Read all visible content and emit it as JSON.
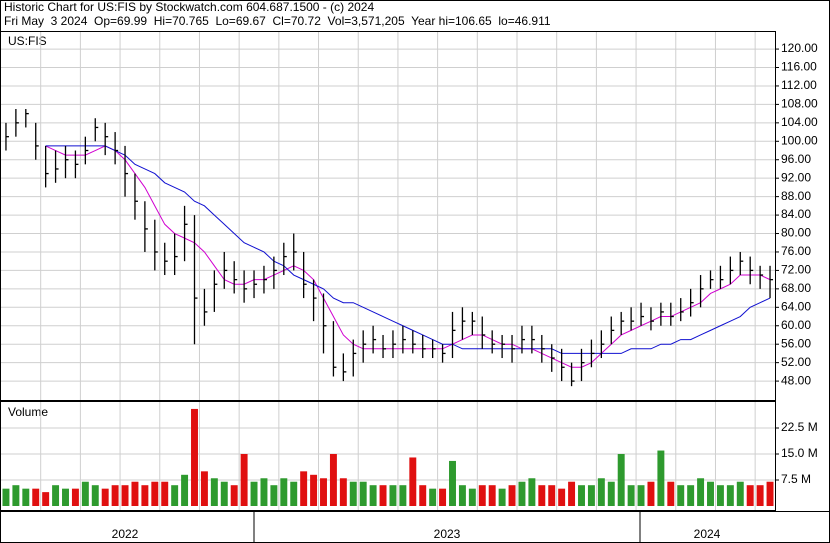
{
  "header": {
    "line1": "Historic Chart for US:FIS by Stockwatch.com 604.687.1500 - (c) 2024",
    "line2": "Fri May  3 2024  Op=69.99  Hi=70.765  Lo=69.67  Cl=70.72  Vol=3,571,205  Year hi=106.65  lo=46.911"
  },
  "chart_data": {
    "type": "hlc",
    "symbol": "US:FIS",
    "volume_title": "Volume",
    "periods": [
      "2022",
      "2023",
      "2024"
    ],
    "ylim": [
      43.9,
      123.7
    ],
    "yticks": [
      {
        "value": 48,
        "label": "48.00"
      },
      {
        "value": 52,
        "label": "52.00"
      },
      {
        "value": 56,
        "label": "56.00"
      },
      {
        "value": 60,
        "label": "60.00"
      },
      {
        "value": 64,
        "label": "64.00"
      },
      {
        "value": 68,
        "label": "68.00"
      },
      {
        "value": 72,
        "label": "72.00"
      },
      {
        "value": 76,
        "label": "76.00"
      },
      {
        "value": 80,
        "label": "80.00"
      },
      {
        "value": 84,
        "label": "84.00"
      },
      {
        "value": 88,
        "label": "88.00"
      },
      {
        "value": 92,
        "label": "92.00"
      },
      {
        "value": 96,
        "label": "96.00"
      },
      {
        "value": 100,
        "label": "100.00"
      },
      {
        "value": 104,
        "label": "104.00"
      },
      {
        "value": 108,
        "label": "108.00"
      },
      {
        "value": 112,
        "label": "112.00"
      },
      {
        "value": 116,
        "label": "116.00"
      },
      {
        "value": 120,
        "label": "120.00"
      }
    ],
    "grid": true,
    "bar_color": "#000000",
    "high": [
      104,
      107,
      107,
      104,
      99,
      98,
      99,
      98,
      101,
      105,
      104,
      102,
      99,
      93,
      87,
      83,
      78,
      80,
      86,
      84,
      68,
      72,
      76,
      74,
      72,
      72,
      73,
      75,
      78,
      80,
      76,
      70,
      67,
      61,
      54,
      57,
      59,
      60,
      58,
      59,
      60,
      59,
      58,
      57,
      56,
      63,
      64,
      63,
      62,
      59,
      58,
      58,
      60,
      60,
      58,
      56,
      55,
      52,
      55,
      57,
      59,
      62,
      63,
      64,
      65,
      64,
      65,
      65,
      66,
      68,
      71,
      72,
      73,
      75,
      76,
      75,
      73,
      73
    ],
    "low": [
      98,
      101,
      103,
      96,
      90,
      91,
      92,
      92,
      95,
      100,
      97,
      95,
      88,
      83,
      76,
      72,
      71,
      71,
      74,
      56,
      60,
      63,
      68,
      67,
      65,
      66,
      67,
      68,
      71,
      72,
      66,
      61,
      54,
      49,
      48,
      49,
      52,
      54,
      53,
      53,
      54,
      54,
      53,
      53,
      52,
      53,
      57,
      58,
      55,
      54,
      53,
      52,
      54,
      54,
      52,
      50,
      48,
      46.9,
      48,
      51,
      53,
      56,
      58,
      59,
      60,
      59,
      60,
      60,
      61,
      62,
      64,
      68,
      68,
      69,
      71,
      69,
      68,
      66
    ],
    "close": [
      101,
      104,
      106,
      99,
      93,
      94,
      96,
      95,
      98,
      103,
      101,
      98,
      93,
      87,
      81,
      76,
      74,
      75,
      82,
      66,
      63,
      69,
      72,
      70,
      68,
      69,
      70,
      72,
      75,
      76,
      69,
      66,
      60,
      51,
      50,
      54,
      56,
      57,
      55,
      56,
      57,
      56,
      55,
      55,
      54,
      59,
      61,
      61,
      58,
      56,
      56,
      55,
      57,
      57,
      55,
      53,
      51,
      48,
      52,
      54,
      56,
      59,
      61,
      61,
      62,
      61,
      63,
      62,
      63,
      65,
      68,
      70,
      70,
      72,
      74,
      72,
      71,
      70
    ],
    "moving_averages": [
      {
        "color": "#d000d0",
        "values": [
          null,
          null,
          null,
          null,
          99,
          98,
          97,
          97,
          97,
          98,
          99,
          98,
          96,
          93,
          90,
          86,
          82,
          80,
          79,
          78,
          76,
          73,
          70,
          69,
          69,
          70,
          70,
          71,
          72,
          73,
          72,
          70,
          66,
          62,
          58,
          56,
          55,
          55,
          55,
          55,
          55,
          55,
          55,
          55,
          55,
          56,
          57,
          58,
          58,
          57,
          56,
          56,
          55,
          55,
          54,
          53,
          52,
          51,
          51,
          52,
          54,
          56,
          58,
          59,
          60,
          61,
          62,
          62,
          63,
          64,
          65,
          67,
          68,
          69,
          71,
          71,
          71,
          70
        ]
      },
      {
        "color": "#1010d0",
        "values": [
          null,
          null,
          null,
          null,
          99,
          99,
          99,
          99,
          99,
          99,
          99,
          98,
          97,
          95,
          94,
          93,
          91,
          90,
          89,
          87,
          86,
          84,
          82,
          80,
          78,
          77,
          76,
          74,
          73,
          71,
          70,
          69,
          68,
          66,
          65,
          65,
          64,
          63,
          62,
          61,
          60,
          59,
          58,
          57,
          56,
          56,
          55,
          55,
          55,
          55,
          55,
          55,
          55,
          55,
          55,
          55,
          54,
          54,
          54,
          54,
          54,
          54,
          54,
          55,
          55,
          55,
          56,
          56,
          57,
          57,
          58,
          59,
          60,
          61,
          62,
          64,
          65,
          66
        ]
      }
    ],
    "volume": {
      "values": [
        5,
        6,
        5,
        5,
        4,
        6,
        5,
        5,
        7,
        6,
        5,
        6,
        6,
        7,
        6,
        7,
        7,
        6,
        9,
        28,
        10,
        8,
        7,
        6,
        15,
        7,
        8,
        6,
        8,
        7,
        10,
        9,
        8,
        15,
        8,
        7,
        7,
        6,
        6,
        6,
        6,
        14,
        6,
        5,
        5,
        13,
        6,
        5,
        6,
        6,
        5,
        6,
        7,
        8,
        6,
        6,
        5,
        7,
        6,
        6,
        8,
        7,
        15,
        6,
        6,
        7,
        16,
        7,
        6,
        6,
        8,
        7,
        6,
        6,
        7,
        6,
        6,
        7
      ],
      "ylim": [
        0,
        30
      ],
      "yticks": [
        {
          "value": 7.5,
          "label": "7.5 M"
        },
        {
          "value": 15,
          "label": "15.0 M"
        },
        {
          "value": 22.5,
          "label": "22.5 M"
        }
      ],
      "up_color": "#2e9a2e",
      "down_color": "#e01010"
    }
  }
}
